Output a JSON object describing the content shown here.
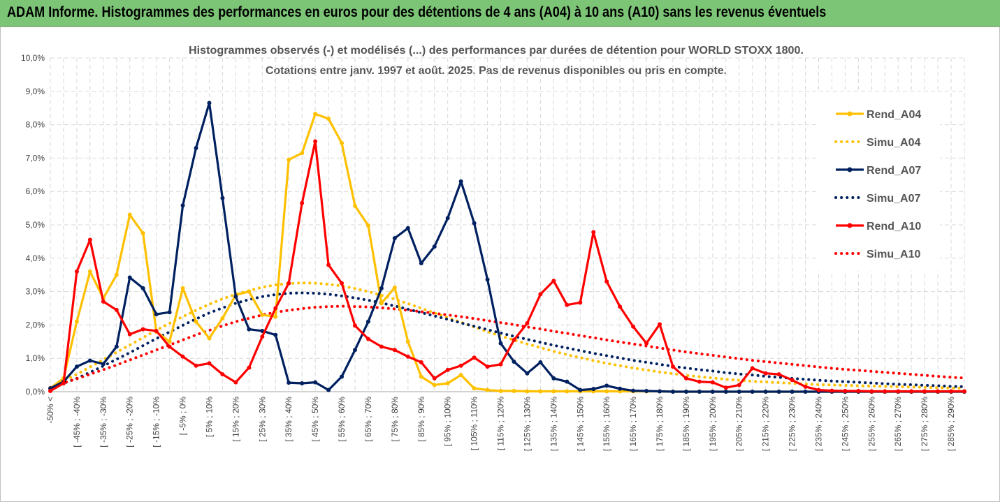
{
  "header": {
    "title": "ADAM Informe. Histogrammes des performances en euros pour des détentions de 4 ans (A04) à 10 ans (A10) sans les revenus éventuels"
  },
  "colors": {
    "A04": "#ffc000",
    "A07": "#002060",
    "A10": "#ff0000",
    "banner": "#7cc576"
  },
  "chart_data": {
    "type": "line",
    "title": [
      "Histogrammes observés (-) et modélisés (...) des performances par durées de détention pour WORLD STOXX 1800.",
      "Cotations entre janv. 1997 et août. 2025. Pas de revenus disponibles ou pris en compte."
    ],
    "ylim": [
      0,
      0.1
    ],
    "yticks": [
      "0,0%",
      "1,0%",
      "2,0%",
      "3,0%",
      "4,0%",
      "5,0%",
      "6,0%",
      "7,0%",
      "8,0%",
      "9,0%",
      "10,0%"
    ],
    "x_tick_labels": [
      "-50% <",
      "[ -45% ; -40%",
      "[ -35% ; -30%",
      "[ -25% ; -20%",
      "[ -15% ; -10%",
      "[ -5% ; 0%",
      "[ 5% ; 10%",
      "[ 15% ; 20%",
      "[ 25% ; 30%",
      "[ 35% ; 40%",
      "[ 45% ; 50%",
      "[ 55% ; 60%",
      "[ 65% ; 70%",
      "[ 75% ; 80%",
      "[ 85% ; 90%",
      "[ 95% ; 100%",
      "[ 105% ; 110%",
      "[ 115% ; 120%",
      "[ 125% ; 130%",
      "[ 135% ; 140%",
      "[ 145% ; 150%",
      "[ 155% ; 160%",
      "[ 165% ; 170%",
      "[ 175% ; 180%",
      "[ 185% ; 190%",
      "[ 195% ; 200%",
      "[ 205% ; 210%",
      "[ 215% ; 220%",
      "[ 225% ; 230%",
      "[ 235% ; 240%",
      "[ 245% ; 250%",
      "[ 255% ; 260%",
      "[ 265% ; 270%",
      "[ 275% ; 280%",
      "[ 285% ; 290%"
    ],
    "n_bins": 70,
    "legend_position": "right",
    "series": [
      {
        "name": "Rend_A04",
        "style": "solid",
        "color": "#ffc000",
        "values": [
          0.001,
          0.004,
          0.021,
          0.036,
          0.028,
          0.035,
          0.053,
          0.0475,
          0.018,
          0.015,
          0.031,
          0.021,
          0.016,
          0.022,
          0.029,
          0.03,
          0.023,
          0.0225,
          0.0695,
          0.0715,
          0.0832,
          0.0818,
          0.0745,
          0.0557,
          0.0498,
          0.0265,
          0.0312,
          0.015,
          0.0045,
          0.002,
          0.0025,
          0.005,
          0.001,
          0.0005,
          0.0002,
          0.0002,
          0.0001,
          0.0001,
          0.0001,
          0.0001,
          0.0001,
          0.0001,
          0.0001,
          0.0001,
          0.0001,
          0.0001,
          0.0001,
          0,
          0,
          0,
          0,
          0,
          0,
          0,
          0,
          0,
          0,
          0,
          0,
          0,
          0,
          0,
          0,
          0,
          0,
          0,
          0,
          0,
          0,
          0
        ]
      },
      {
        "name": "Simu_A04",
        "style": "dotted",
        "color": "#ffc000",
        "values": [
          0.0013,
          0.0032,
          0.0052,
          0.0074,
          0.0096,
          0.0118,
          0.014,
          0.0162,
          0.0184,
          0.0205,
          0.0225,
          0.0244,
          0.0262,
          0.0278,
          0.0292,
          0.0303,
          0.0313,
          0.032,
          0.0324,
          0.0326,
          0.0325,
          0.0322,
          0.0317,
          0.0309,
          0.03,
          0.0289,
          0.0277,
          0.0264,
          0.025,
          0.0236,
          0.0222,
          0.0208,
          0.0194,
          0.018,
          0.0167,
          0.0155,
          0.0143,
          0.0132,
          0.0121,
          0.0111,
          0.0102,
          0.0093,
          0.0085,
          0.0078,
          0.0071,
          0.0065,
          0.0059,
          0.0054,
          0.0049,
          0.0045,
          0.0041,
          0.0037,
          0.0034,
          0.0031,
          0.0029,
          0.0027,
          0.0025,
          0.0023,
          0.0021,
          0.002,
          0.0019,
          0.0018,
          0.0017,
          0.0016,
          0.0015,
          0.0014,
          0.0013,
          0.0012,
          0.0011,
          0.001
        ]
      },
      {
        "name": "Rend_A07",
        "style": "solid",
        "color": "#002060",
        "values": [
          0.001,
          0.003,
          0.0075,
          0.0093,
          0.0083,
          0.0135,
          0.0342,
          0.031,
          0.0232,
          0.0238,
          0.0558,
          0.073,
          0.0865,
          0.058,
          0.0285,
          0.0187,
          0.0182,
          0.017,
          0.0027,
          0.0025,
          0.0028,
          0.0005,
          0.0045,
          0.0125,
          0.021,
          0.031,
          0.046,
          0.049,
          0.0385,
          0.0435,
          0.052,
          0.063,
          0.0505,
          0.0336,
          0.0145,
          0.009,
          0.0055,
          0.0088,
          0.004,
          0.003,
          0.0005,
          0.0008,
          0.0018,
          0.0009,
          0.0003,
          0.0002,
          0.0001,
          0,
          0,
          0,
          0,
          0,
          0,
          0,
          0,
          0,
          0,
          0,
          0,
          0,
          0,
          0,
          0,
          0,
          0,
          0,
          0,
          0,
          0,
          0
        ]
      },
      {
        "name": "Simu_A07",
        "style": "dotted",
        "color": "#002060",
        "values": [
          0.001,
          0.0025,
          0.004,
          0.0058,
          0.0077,
          0.0097,
          0.0117,
          0.0138,
          0.0159,
          0.0179,
          0.0199,
          0.0218,
          0.0236,
          0.0251,
          0.0265,
          0.0276,
          0.0285,
          0.0291,
          0.0295,
          0.0296,
          0.0295,
          0.0292,
          0.0287,
          0.0281,
          0.0274,
          0.0266,
          0.0257,
          0.0247,
          0.0237,
          0.0227,
          0.0217,
          0.0206,
          0.0196,
          0.0186,
          0.0176,
          0.0166,
          0.0157,
          0.0148,
          0.0139,
          0.0131,
          0.0123,
          0.0115,
          0.0108,
          0.0101,
          0.0094,
          0.0088,
          0.0082,
          0.0076,
          0.0071,
          0.0066,
          0.0062,
          0.0057,
          0.0053,
          0.005,
          0.0046,
          0.0043,
          0.004,
          0.0037,
          0.0034,
          0.0032,
          0.003,
          0.0028,
          0.0026,
          0.0024,
          0.0022,
          0.0021,
          0.0019,
          0.0018,
          0.0016,
          0.0015
        ]
      },
      {
        "name": "Rend_A10",
        "style": "solid",
        "color": "#ff0000",
        "values": [
          0.0002,
          0.0025,
          0.036,
          0.0455,
          0.027,
          0.0245,
          0.0172,
          0.0187,
          0.0182,
          0.0135,
          0.0105,
          0.0078,
          0.0085,
          0.0052,
          0.0028,
          0.0072,
          0.0165,
          0.025,
          0.0325,
          0.0565,
          0.075,
          0.038,
          0.0325,
          0.0198,
          0.0158,
          0.0135,
          0.0125,
          0.0105,
          0.0088,
          0.004,
          0.0065,
          0.0078,
          0.0102,
          0.0075,
          0.0082,
          0.0155,
          0.0205,
          0.0292,
          0.0332,
          0.026,
          0.0267,
          0.0478,
          0.033,
          0.0255,
          0.0195,
          0.0145,
          0.0202,
          0.0075,
          0.004,
          0.003,
          0.0028,
          0.0012,
          0.002,
          0.007,
          0.0055,
          0.0052,
          0.0035,
          0.0015,
          0.0005,
          0.0003,
          0.0002,
          0.0002,
          0.0001,
          0.0001,
          0.0001,
          0.0001,
          0.0001,
          0.0001,
          0.0001,
          0.0001
        ]
      },
      {
        "name": "Simu_A10",
        "style": "dotted",
        "color": "#ff0000",
        "values": [
          0.0013,
          0.0026,
          0.0039,
          0.0052,
          0.0066,
          0.008,
          0.0095,
          0.011,
          0.0125,
          0.014,
          0.0155,
          0.017,
          0.0184,
          0.0197,
          0.021,
          0.022,
          0.023,
          0.0238,
          0.0244,
          0.0249,
          0.0253,
          0.0255,
          0.0256,
          0.0255,
          0.0254,
          0.0251,
          0.0248,
          0.0244,
          0.024,
          0.0235,
          0.023,
          0.0225,
          0.0219,
          0.0213,
          0.0207,
          0.0201,
          0.0194,
          0.0188,
          0.0181,
          0.0175,
          0.0168,
          0.0162,
          0.0155,
          0.0149,
          0.0143,
          0.0137,
          0.0131,
          0.0125,
          0.0119,
          0.0114,
          0.0109,
          0.0104,
          0.0099,
          0.0094,
          0.009,
          0.0086,
          0.0082,
          0.0078,
          0.0074,
          0.007,
          0.0067,
          0.0064,
          0.0061,
          0.0058,
          0.0055,
          0.0052,
          0.0049,
          0.0046,
          0.0043,
          0.0041
        ]
      }
    ]
  }
}
